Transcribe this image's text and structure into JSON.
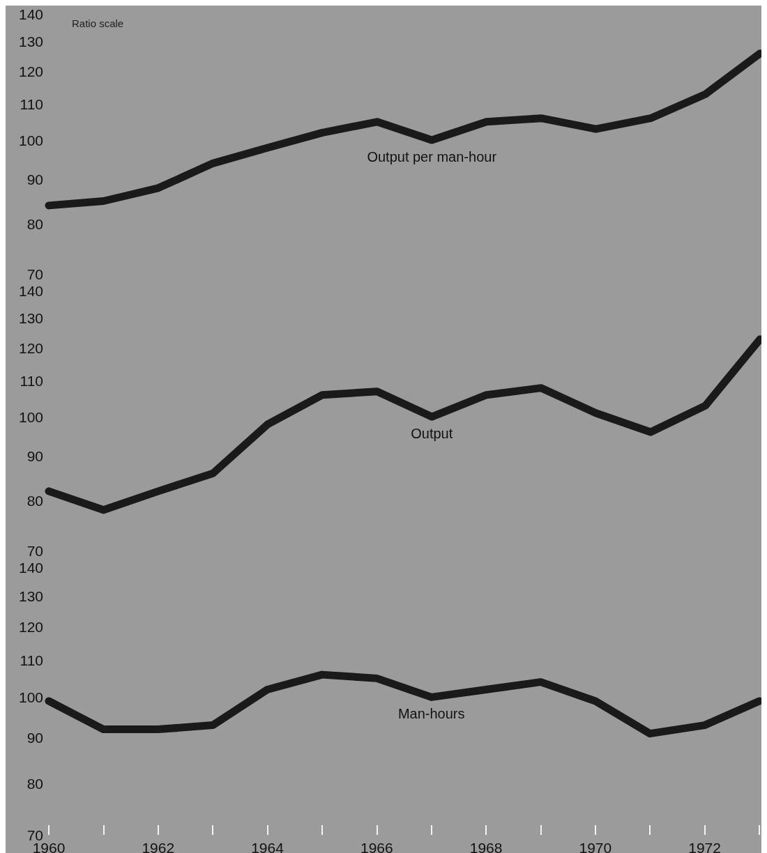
{
  "chart_data": [
    {
      "type": "line",
      "x": [
        1960,
        1961,
        1962,
        1963,
        1964,
        1965,
        1966,
        1967,
        1968,
        1969,
        1970,
        1971,
        1972,
        1973
      ],
      "series": [
        {
          "name": "Output per man-hour",
          "color": "#1a1a1a",
          "values": [
            84,
            85,
            88,
            94,
            98,
            102,
            105,
            100,
            105,
            106,
            103,
            106,
            113,
            126
          ]
        }
      ],
      "log": "y",
      "ylim": [
        70,
        140
      ],
      "yticks": [
        70,
        80,
        90,
        100,
        110,
        120,
        130,
        140
      ],
      "xlim": [
        1960,
        1973
      ],
      "tick_labels": "y",
      "grid": false,
      "legend": false,
      "line_style": "solid",
      "marker": "none",
      "annotations": [
        "Ratio scale"
      ]
    },
    {
      "type": "line",
      "x": [
        1960,
        1961,
        1962,
        1963,
        1964,
        1965,
        1966,
        1967,
        1968,
        1969,
        1970,
        1971,
        1972,
        1973
      ],
      "series": [
        {
          "name": "Output",
          "color": "#1a1a1a",
          "values": [
            82,
            78,
            82,
            86,
            98,
            106,
            107,
            100,
            106,
            108,
            101,
            96,
            103,
            123
          ]
        }
      ],
      "log": "y",
      "ylim": [
        70,
        140
      ],
      "yticks": [
        70,
        80,
        90,
        100,
        110,
        120,
        130,
        140
      ],
      "xlim": [
        1960,
        1973
      ],
      "tick_labels": "y",
      "grid": false,
      "legend": false,
      "line_style": "solid",
      "marker": "none"
    },
    {
      "type": "line",
      "x": [
        1960,
        1961,
        1962,
        1963,
        1964,
        1965,
        1966,
        1967,
        1968,
        1969,
        1970,
        1971,
        1972,
        1973
      ],
      "series": [
        {
          "name": "Man-hours",
          "color": "#1a1a1a",
          "values": [
            99,
            92,
            92,
            93,
            102,
            106,
            105,
            100,
            102,
            104,
            99,
            91,
            93,
            99
          ]
        }
      ],
      "log": "y",
      "ylim": [
        70,
        140
      ],
      "yticks": [
        70,
        80,
        90,
        100,
        110,
        120,
        130,
        140
      ],
      "xlim": [
        1960,
        1973
      ],
      "xticks": [
        1960,
        {
          "value": 1961,
          "label": null
        },
        1962,
        {
          "value": 1963,
          "label": null
        },
        1964,
        {
          "value": 1965,
          "label": null
        },
        1966,
        {
          "value": 1967,
          "label": null
        },
        1968,
        {
          "value": 1969,
          "label": null
        },
        1970,
        {
          "value": 1971,
          "label": null
        },
        1972,
        {
          "value": 1973,
          "label": null
        }
      ],
      "grid": false,
      "legend": false,
      "line_style": "solid",
      "marker": "none"
    }
  ]
}
